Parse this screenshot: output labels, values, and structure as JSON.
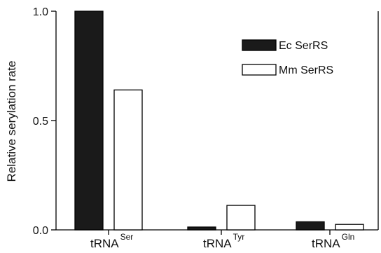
{
  "chart_data": {
    "type": "bar",
    "categories": [
      {
        "base": "tRNA",
        "sup": "Ser"
      },
      {
        "base": "tRNA",
        "sup": "Tyr"
      },
      {
        "base": "tRNA",
        "sup": "Gln"
      }
    ],
    "series": [
      {
        "name": "Ec SerRS",
        "values": [
          1.0,
          0.013,
          0.037
        ],
        "color": "#1a1a1a"
      },
      {
        "name": "Mm SerRS",
        "values": [
          0.64,
          0.112,
          0.025
        ],
        "color": "#ffffff"
      }
    ],
    "ylabel": "Relative serylation rate",
    "ylim": [
      0,
      1.0
    ],
    "yticks": [
      {
        "value": 0.0,
        "label": "0.0"
      },
      {
        "value": 0.5,
        "label": "0.5"
      },
      {
        "value": 1.0,
        "label": "1.0"
      }
    ],
    "legend_position": "top-right",
    "grid": false
  }
}
